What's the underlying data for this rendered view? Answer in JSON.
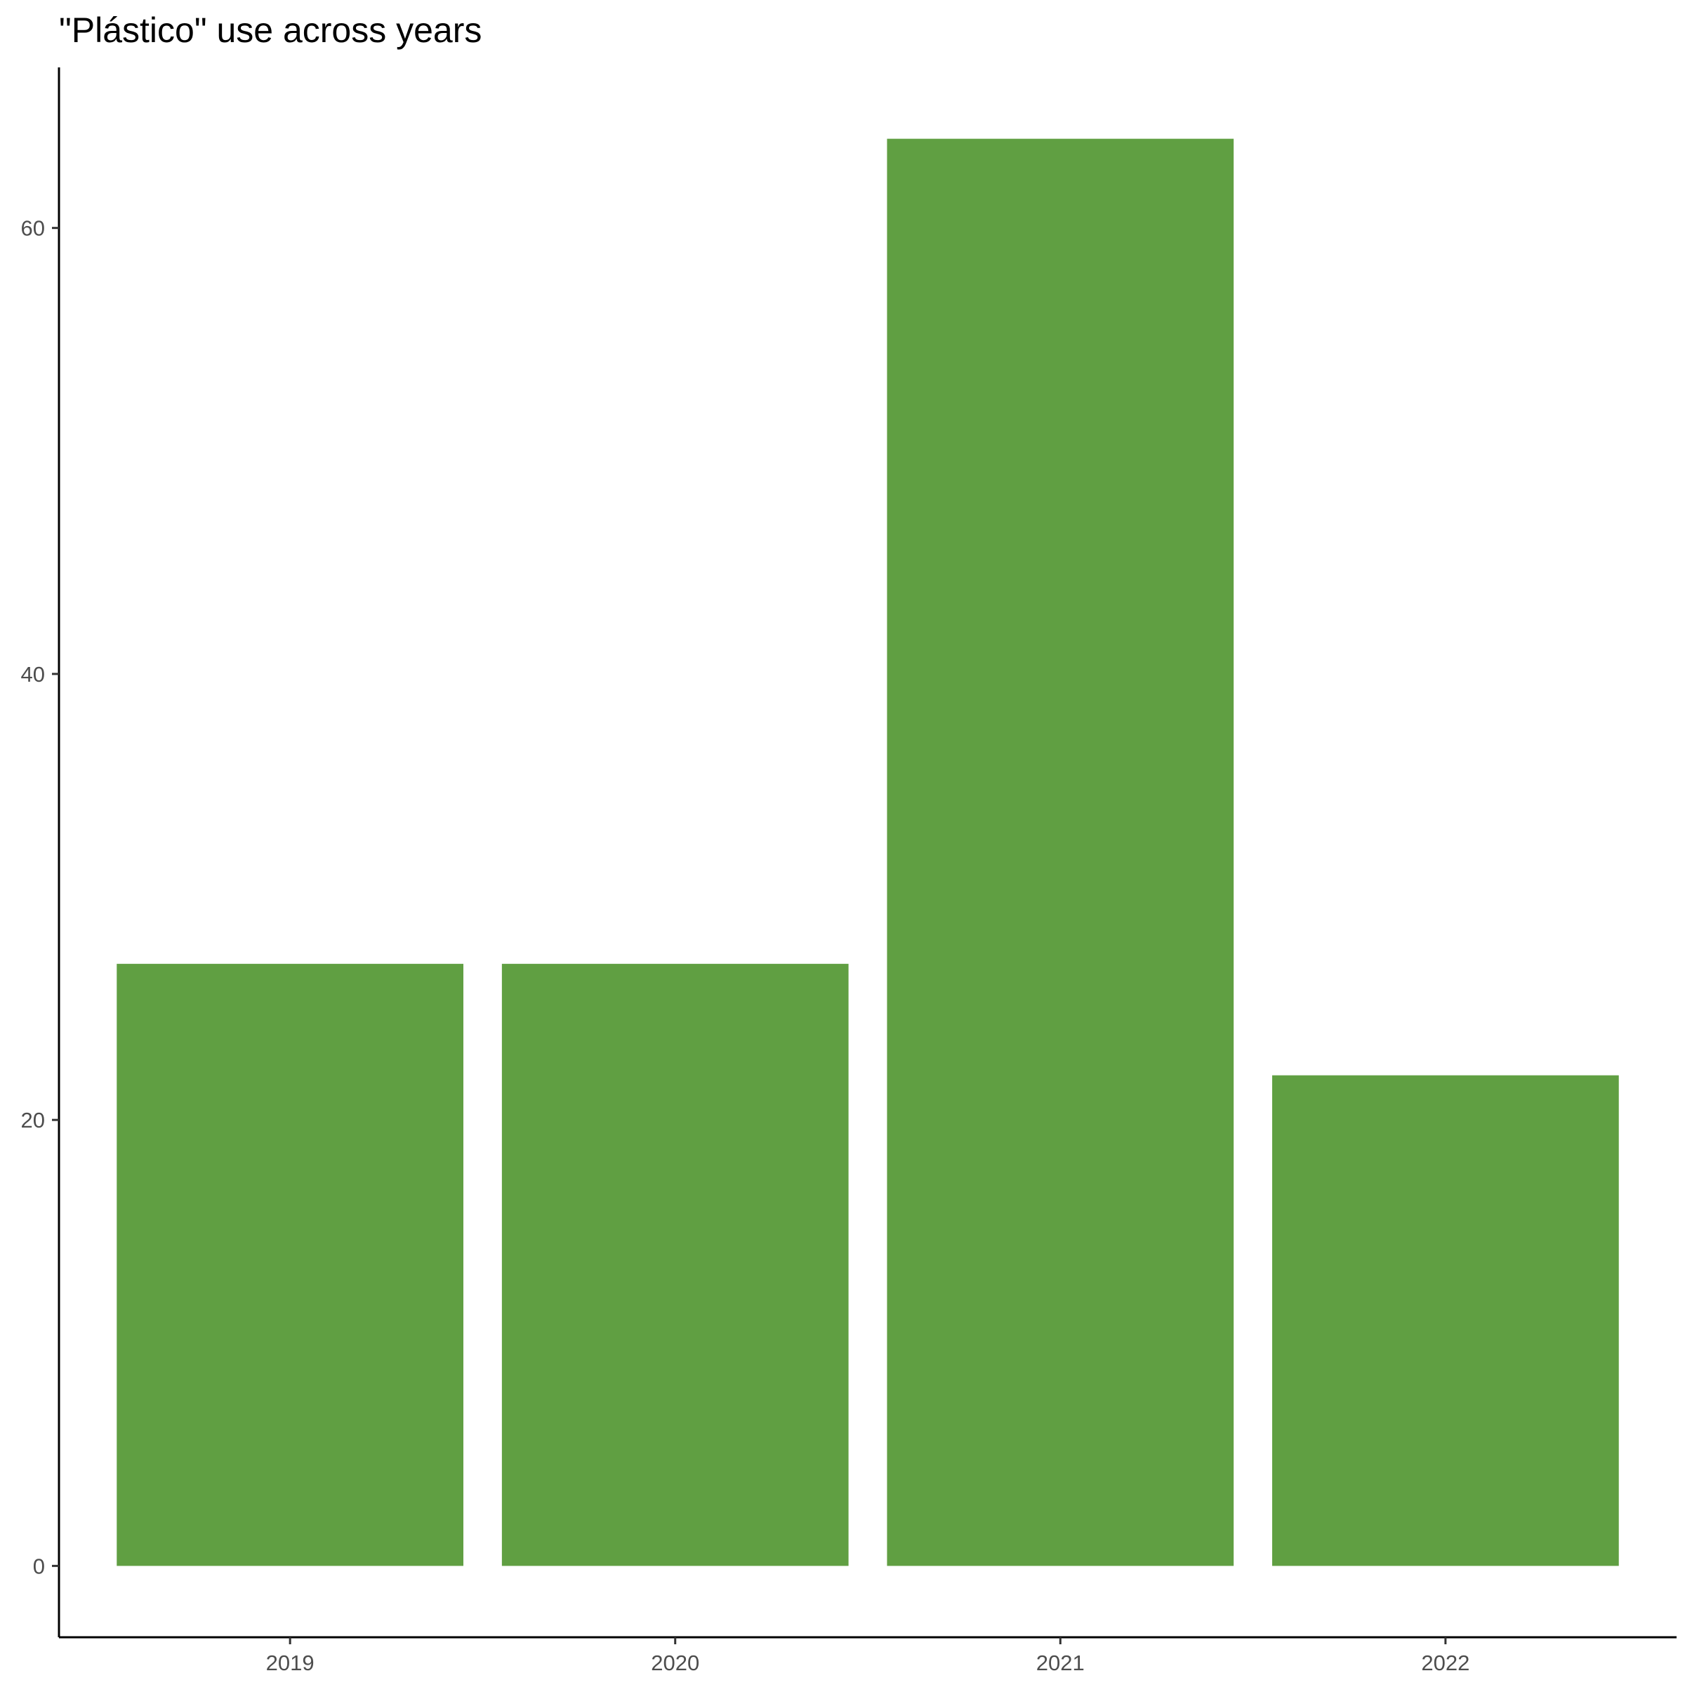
{
  "chart_data": {
    "type": "bar",
    "title": "\"Plástico\" use across years",
    "xlabel": "",
    "ylabel": "",
    "categories": [
      "2019",
      "2020",
      "2021",
      "2022"
    ],
    "values": [
      27,
      27,
      64,
      22
    ],
    "ylim": [
      -3.2,
      67.2
    ],
    "yticks": [
      0,
      20,
      40,
      60
    ],
    "bar_color": "#609f42",
    "grid": false,
    "legend": "none"
  }
}
